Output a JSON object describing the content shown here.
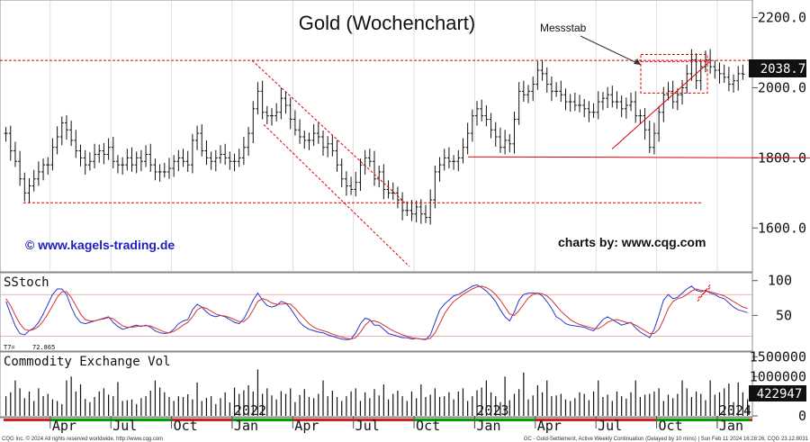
{
  "chart_data": {
    "type": "ohlc-weekly",
    "title": "Gold (Wochenchart)",
    "watermark_left": "© www.kagels-trading.de",
    "watermark_right": "charts by: www.cqg.com",
    "annotation": "Messstab",
    "last_price": "2038.7",
    "price_axis": {
      "min": 1480,
      "max": 2240,
      "ticks": [
        {
          "value": 2200,
          "label": "2200.0"
        },
        {
          "value": 2000,
          "label": "2000.0"
        },
        {
          "value": 1800,
          "label": "1800.0"
        },
        {
          "value": 1600,
          "label": "1600.0"
        }
      ]
    },
    "x_axis": {
      "labels": [
        {
          "week": 10,
          "label": "Apr"
        },
        {
          "week": 23,
          "label": "Jul"
        },
        {
          "week": 36,
          "label": "Oct"
        },
        {
          "week": 49,
          "label": "2022"
        },
        {
          "week": 49,
          "label": "Jan"
        },
        {
          "week": 62,
          "label": "Apr"
        },
        {
          "week": 75,
          "label": "Jul"
        },
        {
          "week": 88,
          "label": "Oct"
        },
        {
          "week": 101,
          "label": "2023"
        },
        {
          "week": 101,
          "label": "Jan"
        },
        {
          "week": 114,
          "label": "Apr"
        },
        {
          "week": 127,
          "label": "Jul"
        },
        {
          "week": 140,
          "label": "Oct"
        },
        {
          "week": 153,
          "label": "2024"
        },
        {
          "week": 153,
          "label": "Jan"
        }
      ]
    },
    "price_series": [
      1870,
      1820,
      1790,
      1740,
      1700,
      1720,
      1740,
      1760,
      1780,
      1780,
      1830,
      1860,
      1900,
      1880,
      1850,
      1820,
      1800,
      1780,
      1790,
      1810,
      1820,
      1810,
      1830,
      1790,
      1780,
      1780,
      1800,
      1780,
      1800,
      1790,
      1810,
      1780,
      1760,
      1760,
      1760,
      1770,
      1790,
      1800,
      1790,
      1780,
      1850,
      1870,
      1820,
      1800,
      1790,
      1800,
      1810,
      1800,
      1790,
      1790,
      1800,
      1830,
      1870,
      1940,
      1990,
      1930,
      1920,
      1920,
      1930,
      1970,
      1950,
      1910,
      1880,
      1860,
      1850,
      1850,
      1870,
      1860,
      1830,
      1840,
      1820,
      1780,
      1740,
      1720,
      1710,
      1730,
      1780,
      1800,
      1790,
      1740,
      1760,
      1710,
      1700,
      1700,
      1680,
      1650,
      1650,
      1640,
      1660,
      1640,
      1630,
      1680,
      1760,
      1780,
      1800,
      1790,
      1790,
      1800,
      1830,
      1870,
      1920,
      1940,
      1920,
      1910,
      1880,
      1860,
      1830,
      1850,
      1840,
      1910,
      1990,
      1980,
      1990,
      2010,
      2050,
      2040,
      2010,
      1990,
      1990,
      1980,
      1960,
      1960,
      1950,
      1950,
      1940,
      1930,
      1930,
      1960,
      1970,
      1980,
      1960,
      1960,
      1940,
      1950,
      1960,
      1920,
      1920,
      1880,
      1830,
      1870,
      1930,
      1980,
      1990,
      1960,
      1980,
      2000,
      2040,
      2080,
      2020,
      2060,
      2080,
      2060,
      2050,
      2040,
      2030,
      2010,
      2020,
      2040,
      2038.7
    ],
    "high_low_extremes": {
      "high_2022_03": 2070,
      "low_2022_11": 1620,
      "high_2023_05": 2070,
      "high_2023_12": 2090
    },
    "panels": [
      {
        "name": "SStoch",
        "label": "SStoch",
        "readout": "72.865",
        "axis": {
          "min": 0,
          "max": 110,
          "ticks": [
            {
              "value": 100,
              "label": "100"
            },
            {
              "value": 50,
              "label": "50"
            }
          ]
        },
        "levels": [
          80,
          20
        ],
        "series": [
          {
            "color": "#2a3ac8",
            "role": "fast",
            "values": [
              70,
              52,
              35,
              24,
              22,
              28,
              32,
              40,
              52,
              66,
              80,
              88,
              88,
              80,
              62,
              48,
              40,
              38,
              40,
              42,
              44,
              46,
              48,
              40,
              34,
              30,
              32,
              34,
              36,
              34,
              36,
              33,
              28,
              25,
              24,
              25,
              30,
              38,
              42,
              44,
              58,
              66,
              62,
              55,
              50,
              48,
              50,
              48,
              44,
              40,
              38,
              45,
              58,
              72,
              82,
              72,
              64,
              62,
              64,
              70,
              68,
              60,
              50,
              40,
              34,
              30,
              28,
              26,
              25,
              22,
              20,
              18,
              16,
              15,
              16,
              25,
              38,
              46,
              44,
              36,
              36,
              30,
              24,
              22,
              20,
              18,
              18,
              16,
              17,
              16,
              15,
              22,
              40,
              58,
              66,
              72,
              78,
              80,
              84,
              88,
              92,
              94,
              90,
              85,
              78,
              70,
              58,
              48,
              42,
              55,
              72,
              80,
              82,
              82,
              82,
              78,
              70,
              60,
              48,
              44,
              38,
              36,
              35,
              34,
              33,
              30,
              28,
              36,
              44,
              48,
              44,
              40,
              36,
              38,
              40,
              32,
              26,
              22,
              18,
              30,
              50,
              72,
              80,
              74,
              76,
              82,
              88,
              92,
              86,
              84,
              86,
              82,
              80,
              76,
              74,
              68,
              62,
              58,
              56,
              54
            ]
          },
          {
            "color": "#d43434",
            "role": "slow",
            "values": [
              74,
              64,
              50,
              38,
              30,
              28,
              30,
              34,
              42,
              52,
              64,
              76,
              84,
              84,
              76,
              64,
              52,
              44,
              42,
              42,
              44,
              45,
              47,
              45,
              40,
              35,
              33,
              33,
              34,
              35,
              35,
              35,
              32,
              29,
              26,
              25,
              27,
              31,
              36,
              40,
              48,
              58,
              62,
              60,
              56,
              52,
              50,
              49,
              47,
              44,
              41,
              41,
              47,
              58,
              70,
              74,
              72,
              68,
              66,
              66,
              67,
              66,
              60,
              52,
              45,
              38,
              33,
              30,
              28,
              26,
              23,
              21,
              19,
              17,
              16,
              18,
              26,
              36,
              42,
              42,
              40,
              36,
              32,
              28,
              25,
              22,
              20,
              18,
              17,
              16,
              16,
              17,
              25,
              38,
              52,
              62,
              70,
              75,
              80,
              84,
              88,
              91,
              92,
              90,
              86,
              80,
              72,
              62,
              52,
              50,
              57,
              66,
              75,
              80,
              82,
              81,
              78,
              72,
              64,
              56,
              50,
              44,
              40,
              37,
              35,
              33,
              31,
              31,
              35,
              40,
              43,
              44,
              42,
              40,
              39,
              36,
              32,
              28,
              24,
              24,
              30,
              44,
              60,
              70,
              74,
              76,
              80,
              85,
              88,
              86,
              85,
              84,
              82,
              80,
              78,
              74,
              70,
              66,
              62,
              60
            ]
          }
        ]
      },
      {
        "name": "Commodity Exchange Vol",
        "label": "Commodity Exchange Vol",
        "readout": "422947",
        "axis": {
          "min": 0,
          "max": 1600000,
          "ticks": [
            {
              "value": 1500000,
              "label": "1500000"
            },
            {
              "value": 1000000,
              "label": "1000000"
            },
            {
              "value": 0,
              "label": "0"
            }
          ]
        },
        "bar_color": "#111111",
        "values": [
          500000,
          600000,
          900000,
          700000,
          450000,
          620000,
          380000,
          700000,
          500000,
          560000,
          420000,
          380000,
          300000,
          900000,
          1000000,
          620000,
          800000,
          430000,
          350000,
          480000,
          620000,
          700000,
          540000,
          500000,
          860000,
          380000,
          400000,
          420000,
          300000,
          450000,
          500000,
          640000,
          900000,
          720000,
          600000,
          480000,
          380000,
          500000,
          480000,
          550000,
          420000,
          850000,
          380000,
          460000,
          500000,
          300000,
          450000,
          600000,
          340000,
          720000,
          560000,
          650000,
          780000,
          620000,
          1180000,
          560000,
          700000,
          520000,
          420000,
          630000,
          560000,
          700000,
          350000,
          530000,
          680000,
          480000,
          450000,
          560000,
          900000,
          500000,
          640000,
          480000,
          380000,
          500000,
          620000,
          700000,
          380000,
          600000,
          450000,
          680000,
          520000,
          800000,
          420000,
          560000,
          640000,
          500000,
          380000,
          620000,
          450000,
          800000,
          480000,
          540000,
          700000,
          480000,
          500000,
          600000,
          420000,
          620000,
          700000,
          380000,
          500000,
          650000,
          720000,
          900000,
          600000,
          500000,
          350000,
          1000000,
          400000,
          560000,
          680000,
          1100000,
          420000,
          520000,
          780000,
          600000,
          900000,
          500000,
          520000,
          560000,
          420000,
          380000,
          450000,
          600000,
          560000,
          400000,
          620000,
          900000,
          480000,
          540000,
          380000,
          620000,
          500000,
          440000,
          600000,
          900000,
          480000,
          540000,
          560000,
          620000,
          700000,
          380000,
          540000,
          450000,
          560000,
          900000,
          700000,
          480000,
          620000,
          560000,
          400000,
          900000,
          540000,
          600000,
          700000,
          820000,
          350000,
          850000,
          600000,
          422947
        ]
      }
    ],
    "footer": {
      "left": "CQG Inc. © 2024 All rights reserved worldwide. http://www.cqg.com",
      "right": "GC - Gold-Settlement, Active Weekly Continuation (Delayed by 10 mins) | Sun Feb 11 2024 16:28:26, CQG 23.12.8031"
    },
    "colors": {
      "up_bar": "#00a000",
      "down_bar": "#d02020",
      "grid": "#cccccc",
      "trendline": "#e00000",
      "title": "#111111",
      "watermark": "#2020c0",
      "bar_ink": "#111111"
    }
  }
}
